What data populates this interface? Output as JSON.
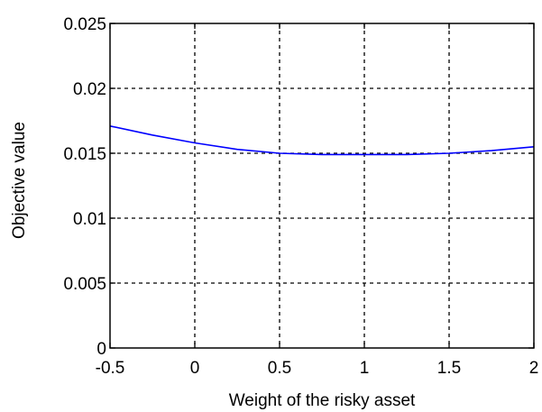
{
  "chart_data": {
    "type": "line",
    "title": "",
    "xlabel": "Weight of the risky asset",
    "ylabel": "Objective value",
    "xlim": [
      -0.5,
      2
    ],
    "ylim": [
      0,
      0.025
    ],
    "xticks": [
      -0.5,
      0,
      0.5,
      1,
      1.5,
      2
    ],
    "xtick_labels": [
      "-0.5",
      "0",
      "0.5",
      "1",
      "1.5",
      "2"
    ],
    "yticks": [
      0,
      0.005,
      0.01,
      0.015,
      0.02,
      0.025
    ],
    "ytick_labels": [
      "0",
      "0.005",
      "0.01",
      "0.015",
      "0.02",
      "0.025"
    ],
    "grid": true,
    "grid_style": "dashed",
    "series": [
      {
        "color": "#0000ff",
        "x": [
          -0.5,
          -0.25,
          0,
          0.25,
          0.5,
          0.75,
          1,
          1.25,
          1.5,
          1.75,
          2
        ],
        "y": [
          0.0171,
          0.0164,
          0.0158,
          0.0153,
          0.015,
          0.0149,
          0.0149,
          0.0149,
          0.015,
          0.0152,
          0.0155
        ]
      }
    ]
  }
}
